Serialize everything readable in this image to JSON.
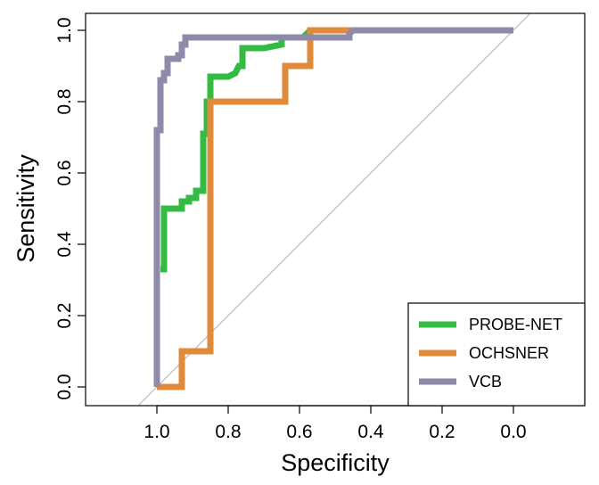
{
  "chart_data": {
    "type": "line",
    "title": "",
    "xlabel": "Specificity",
    "ylabel": "Sensitivity",
    "xlim": [
      1.15,
      -0.15
    ],
    "ylim": [
      0,
      1
    ],
    "x_reversed": true,
    "x_ticks": [
      1.0,
      0.8,
      0.6,
      0.4,
      0.2,
      0.0
    ],
    "x_tick_labels": [
      "1.0",
      "0.8",
      "0.6",
      "0.4",
      "0.2",
      "0.0"
    ],
    "y_ticks": [
      0.0,
      0.2,
      0.4,
      0.6,
      0.8,
      1.0
    ],
    "y_tick_labels": [
      "0.0",
      "0.2",
      "0.4",
      "0.6",
      "0.8",
      "1.0"
    ],
    "grid": false,
    "legend_position": "bottom-right",
    "diagonal_reference": {
      "from": [
        1,
        0
      ],
      "to": [
        0,
        1
      ],
      "color": "#bbbbbb"
    },
    "series": [
      {
        "name": "PROBE-NET",
        "color": "#33bb44",
        "points": [
          [
            0.99,
            0.33
          ],
          [
            0.98,
            0.33
          ],
          [
            0.98,
            0.5
          ],
          [
            0.93,
            0.5
          ],
          [
            0.93,
            0.52
          ],
          [
            0.91,
            0.52
          ],
          [
            0.91,
            0.53
          ],
          [
            0.89,
            0.53
          ],
          [
            0.89,
            0.55
          ],
          [
            0.87,
            0.55
          ],
          [
            0.87,
            0.71
          ],
          [
            0.86,
            0.71
          ],
          [
            0.86,
            0.8
          ],
          [
            0.85,
            0.8
          ],
          [
            0.85,
            0.87
          ],
          [
            0.8,
            0.87
          ],
          [
            0.78,
            0.88
          ],
          [
            0.77,
            0.9
          ],
          [
            0.76,
            0.9
          ],
          [
            0.76,
            0.95
          ],
          [
            0.7,
            0.95
          ],
          [
            0.65,
            0.96
          ],
          [
            0.65,
            0.98
          ],
          [
            0.59,
            0.98
          ],
          [
            0.57,
            1.0
          ],
          [
            0.0,
            1.0
          ]
        ]
      },
      {
        "name": "OCHSNER",
        "color": "#e08a3c",
        "points": [
          [
            1.0,
            0.0
          ],
          [
            0.93,
            0.0
          ],
          [
            0.93,
            0.1
          ],
          [
            0.85,
            0.1
          ],
          [
            0.85,
            0.8
          ],
          [
            0.64,
            0.8
          ],
          [
            0.64,
            0.9
          ],
          [
            0.57,
            0.9
          ],
          [
            0.57,
            1.0
          ],
          [
            0.5,
            1.0
          ],
          [
            0.0,
            1.0
          ]
        ]
      },
      {
        "name": "VCB",
        "color": "#8f89aa",
        "points": [
          [
            1.0,
            0.0
          ],
          [
            1.0,
            0.72
          ],
          [
            0.99,
            0.72
          ],
          [
            0.99,
            0.86
          ],
          [
            0.98,
            0.86
          ],
          [
            0.98,
            0.88
          ],
          [
            0.97,
            0.88
          ],
          [
            0.97,
            0.92
          ],
          [
            0.94,
            0.92
          ],
          [
            0.94,
            0.93
          ],
          [
            0.93,
            0.93
          ],
          [
            0.93,
            0.96
          ],
          [
            0.92,
            0.96
          ],
          [
            0.92,
            0.98
          ],
          [
            0.46,
            0.98
          ],
          [
            0.46,
            0.99
          ],
          [
            0.45,
            1.0
          ],
          [
            0.0,
            1.0
          ]
        ]
      }
    ]
  }
}
